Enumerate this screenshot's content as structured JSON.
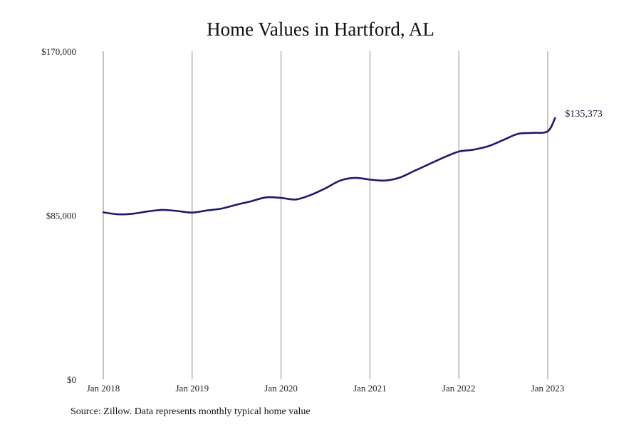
{
  "chart_data": {
    "type": "line",
    "title": "Home Values in Hartford, AL",
    "xlabel": "",
    "ylabel": "",
    "x_ticks": [
      "Jan 2018",
      "Jan 2019",
      "Jan 2020",
      "Jan 2021",
      "Jan 2022",
      "Jan 2023"
    ],
    "y_ticks": [
      "$0",
      "$85,000",
      "$170,000"
    ],
    "y_tick_values": [
      0,
      85000,
      170000
    ],
    "ylim": [
      0,
      170000
    ],
    "xlim": [
      "2018-01",
      "2023-02"
    ],
    "grid": "vertical",
    "line_color": "#1b1b6b",
    "end_label": "$135,373",
    "series": [
      {
        "x": [
          "2018-01",
          "2018-03",
          "2018-05",
          "2018-07",
          "2018-09",
          "2018-11",
          "2019-01",
          "2019-03",
          "2019-05",
          "2019-07",
          "2019-09",
          "2019-11",
          "2020-01",
          "2020-03",
          "2020-05",
          "2020-07",
          "2020-09",
          "2020-11",
          "2021-01",
          "2021-03",
          "2021-05",
          "2021-07",
          "2021-09",
          "2021-11",
          "2022-01",
          "2022-03",
          "2022-05",
          "2022-07",
          "2022-09",
          "2022-11",
          "2023-01",
          "2023-02"
        ],
        "y": [
          86500,
          85500,
          85800,
          87000,
          87800,
          87200,
          86400,
          87500,
          88500,
          90500,
          92300,
          94300,
          94000,
          93200,
          95500,
          99000,
          103000,
          104400,
          103500,
          103000,
          104500,
          108000,
          111500,
          115000,
          118000,
          119000,
          120800,
          124000,
          127200,
          127700,
          128500,
          135373
        ]
      }
    ]
  },
  "source": "Source: Zillow. Data represents monthly typical home value"
}
